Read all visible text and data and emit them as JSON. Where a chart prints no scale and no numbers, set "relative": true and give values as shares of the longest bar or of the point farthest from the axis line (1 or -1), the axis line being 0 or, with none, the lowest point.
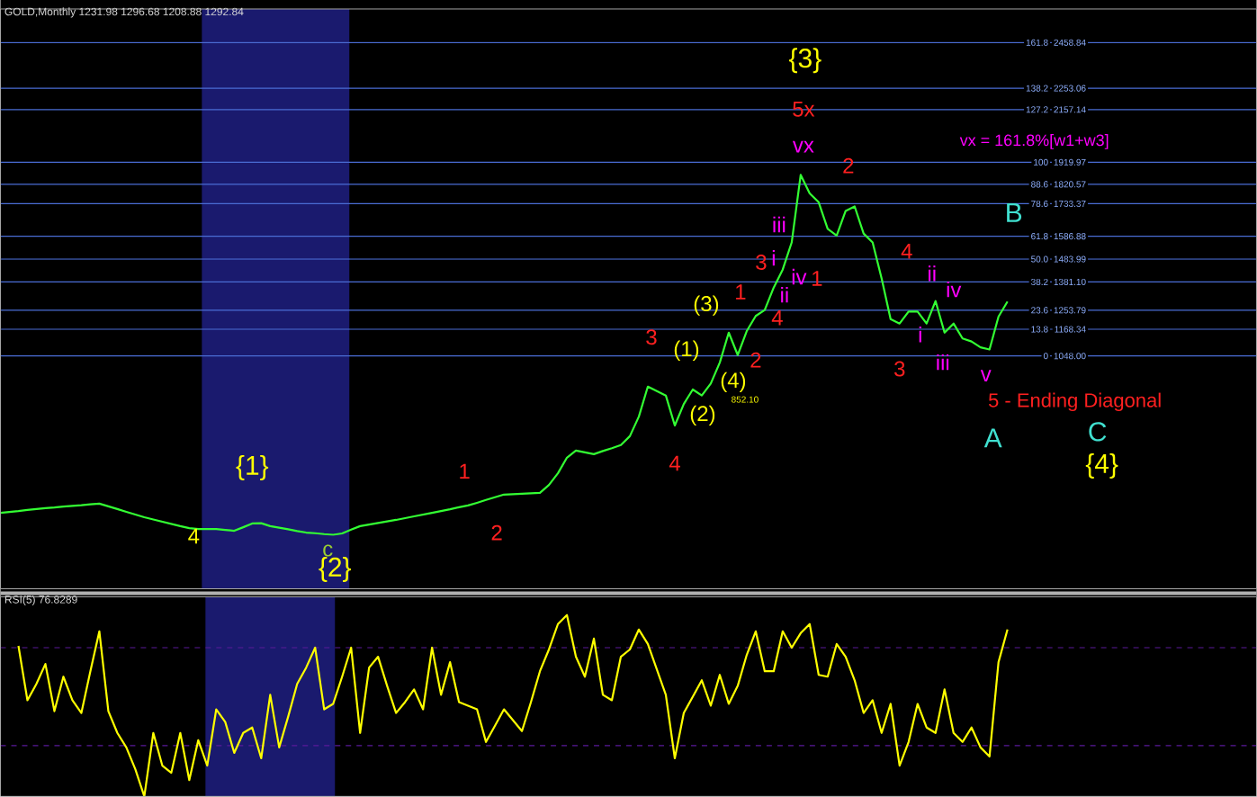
{
  "chart_data": [
    {
      "type": "line",
      "title": "GOLD,Monthly 1231.98 1296.68 1208.88 1292.84",
      "ylim": [
        0,
        2610
      ],
      "tick_labels": "y",
      "categories": [
        null,
        null,
        null,
        null,
        null,
        null,
        null,
        null,
        null,
        null,
        null,
        null,
        null,
        null,
        null,
        null,
        null,
        null,
        null,
        null,
        null,
        null,
        null,
        null,
        null,
        null,
        null,
        null,
        null,
        null,
        null,
        null,
        null,
        null,
        null,
        null,
        null,
        null,
        null,
        null,
        null,
        null,
        null,
        null,
        null,
        null,
        null,
        null,
        null,
        null,
        null,
        null,
        null,
        null,
        null,
        null,
        null,
        null,
        null,
        null,
        null,
        null,
        null,
        null,
        null,
        null,
        null,
        null,
        null,
        null,
        null,
        null,
        null,
        null,
        null,
        null,
        null,
        null,
        null,
        null,
        null,
        null,
        null,
        null,
        null,
        null,
        null,
        null,
        null,
        null,
        null,
        null,
        null,
        null,
        null,
        null,
        null,
        null,
        null,
        null,
        null,
        null,
        null,
        null,
        null,
        null,
        null,
        null,
        null,
        null,
        null,
        null,
        null,
        null,
        null,
        null,
        null,
        null,
        null,
        null,
        null,
        null,
        null,
        null,
        null,
        null,
        null,
        null,
        null,
        null,
        null,
        null,
        null,
        null,
        null,
        null,
        null,
        null,
        null,
        null
      ],
      "yticks": [
        {
          "value": 1048.0,
          "label": "1048.00"
        },
        1168.34,
        1253.79,
        {
          "value": 1381.1,
          "label": "1381.10"
        },
        1483.99,
        1586.88,
        1733.37,
        1820.57,
        1919.97,
        2157.14,
        2253.06,
        2458.84
      ],
      "series": [
        {
          "color": "#33ff33",
          "values": [
            342,
            346,
            350,
            355,
            359,
            363,
            366,
            370,
            373,
            376,
            380,
            383,
            371,
            359,
            346,
            334,
            322,
            312,
            302,
            292,
            282,
            273,
            269,
            269,
            269,
            265,
            261,
            277,
            294,
            295,
            282,
            275,
            268,
            260,
            253,
            250,
            246,
            243,
            249,
            266,
            282,
            289,
            296,
            303,
            310,
            318,
            326,
            334,
            342,
            350,
            358,
            367,
            375,
            387,
            400,
            412,
            424,
            426,
            428,
            430,
            432,
            467,
            520,
            590,
            622,
            614,
            606,
            620,
            633,
            647,
            687,
            775,
            910,
            890,
            870,
            735,
            832,
            897,
            870,
            924,
            1018,
            1153,
            1052,
            1160,
            1228,
            1255,
            1356,
            1437,
            1559,
            1863,
            1780,
            1740,
            1620,
            1590,
            1701,
            1721,
            1599,
            1559,
            1397,
            1214,
            1194,
            1248,
            1248,
            1194,
            1295,
            1153,
            1194,
            1127,
            1113,
            1087,
            1077,
            1225,
            1293,
            null,
            null,
            null,
            null,
            null,
            null,
            null,
            null,
            null,
            null,
            null,
            null,
            null,
            null,
            null,
            null,
            null,
            null,
            null,
            null,
            null,
            null,
            null,
            null,
            null,
            null,
            null
          ]
        }
      ],
      "ref_lines": [
        {
          "axis": "y",
          "value": 1048.0,
          "color": "#4a6cd4"
        },
        {
          "axis": "y",
          "value": 1168.34,
          "color": "#4a6cd4"
        },
        {
          "axis": "y",
          "value": 1253.79,
          "color": "#4a6cd4"
        },
        {
          "axis": "y",
          "value": 1381.1,
          "color": "#4a6cd4"
        },
        {
          "axis": "y",
          "value": 1483.99,
          "color": "#4a6cd4"
        },
        {
          "axis": "y",
          "value": 1586.88,
          "color": "#4a6cd4"
        },
        {
          "axis": "y",
          "value": 1733.37,
          "color": "#4a6cd4"
        },
        {
          "axis": "y",
          "value": 1820.57,
          "color": "#4a6cd4"
        },
        {
          "axis": "y",
          "value": 1919.97,
          "color": "#4a6cd4"
        },
        {
          "axis": "y",
          "value": 2157.14,
          "color": "#4a6cd4"
        },
        {
          "axis": "y",
          "value": 2253.06,
          "color": "#4a6cd4"
        },
        {
          "axis": "y",
          "value": 2458.84,
          "color": "#4a6cd4"
        }
      ],
      "annotations": [
        "{3}",
        "5x",
        "vx",
        "vx = 161.8%[w1+w3]",
        "2",
        "iii",
        "3",
        "i",
        "iv",
        "1",
        "ii",
        "1",
        "4",
        "(3)",
        "3",
        "2",
        "(1)",
        "(4)",
        "852.10",
        "(2)",
        "4",
        "4",
        "ii",
        "iv",
        "i",
        "3",
        "iii",
        "v",
        "B",
        "5 - Ending Diagonal",
        "A",
        "C",
        "{4}",
        "{1}",
        "1",
        "2",
        "{2}",
        "c",
        "4",
        "0",
        "13.8",
        "23.6",
        "38.2",
        "50.0",
        "61.8",
        "78.6",
        "88.6",
        "100",
        "127.2",
        "138.2",
        "161.8"
      ]
    },
    {
      "type": "line",
      "title": "RSI(5) 76.8289",
      "relative": true,
      "tick_labels": false,
      "categories": [
        null,
        null,
        null,
        null,
        null,
        null,
        null,
        null,
        null,
        null,
        null,
        null,
        null,
        null,
        null,
        null,
        null,
        null,
        null,
        null,
        null,
        null,
        null,
        null,
        null,
        null,
        null,
        null,
        null,
        null,
        null,
        null,
        null,
        null,
        null,
        null,
        null,
        null,
        null,
        null,
        null,
        null,
        null,
        null,
        null,
        null,
        null,
        null,
        null,
        null,
        null,
        null,
        null,
        null,
        null,
        null,
        null,
        null,
        null,
        null,
        null,
        null,
        null,
        null,
        null,
        null,
        null,
        null,
        null,
        null,
        null,
        null,
        null,
        null,
        null,
        null,
        null,
        null,
        null,
        null,
        null,
        null,
        null,
        null,
        null,
        null,
        null,
        null,
        null,
        null,
        null,
        null,
        null,
        null,
        null,
        null,
        null,
        null,
        null,
        null,
        null,
        null,
        null,
        null,
        null,
        null,
        null,
        null,
        null,
        null,
        null,
        null,
        null,
        null,
        null,
        null,
        null,
        null,
        null,
        null,
        null,
        null,
        null,
        null,
        null,
        null,
        null,
        null,
        null,
        null,
        null,
        null,
        null,
        null,
        null,
        null,
        null,
        null
      ],
      "series": [
        {
          "color": "#ffff00",
          "values": [
            0.83,
            0.53,
            0.62,
            0.73,
            0.47,
            0.66,
            0.53,
            0.46,
            0.69,
            0.91,
            0.47,
            0.35,
            0.27,
            0.15,
            0,
            0.35,
            0.17,
            0.13,
            0.35,
            0.09,
            0.31,
            0.17,
            0.48,
            0.41,
            0.24,
            0.35,
            0.38,
            0.21,
            0.56,
            0.27,
            0.44,
            0.62,
            0.71,
            0.82,
            0.48,
            0.51,
            0.66,
            0.82,
            0.35,
            0.71,
            0.77,
            0.61,
            0.46,
            0.52,
            0.59,
            0.48,
            0.82,
            0.56,
            0.74,
            0.52,
            0.5,
            0.48,
            0.3,
            0.39,
            0.48,
            0.42,
            0.36,
            0.52,
            0.69,
            0.81,
            0.95,
            1,
            0.77,
            0.66,
            0.87,
            0.56,
            0.53,
            0.77,
            0.81,
            0.92,
            0.84,
            0.7,
            0.56,
            0.21,
            0.46,
            0.55,
            0.64,
            0.5,
            0.67,
            0.51,
            0.61,
            0.78,
            0.91,
            0.69,
            0.69,
            0.91,
            0.82,
            0.9,
            0.95,
            0.67,
            0.66,
            0.84,
            0.77,
            0.64,
            0.46,
            0.53,
            0.35,
            0.51,
            0.17,
            0.3,
            0.51,
            0.38,
            0.35,
            0.59,
            0.35,
            0.3,
            0.38,
            0.27,
            0.22,
            0.74,
            0.92,
            null,
            null,
            null,
            null,
            null,
            null,
            null,
            null,
            null,
            null,
            null,
            null,
            null,
            null,
            null,
            null,
            null,
            null,
            null,
            null,
            null,
            null,
            null,
            null,
            null,
            null,
            null
          ]
        }
      ],
      "ref_lines": [
        {
          "axis": "y",
          "value": 0.82,
          "color": "#5a1a9a",
          "line_style": "dashed"
        },
        {
          "axis": "y",
          "value": 0.28,
          "color": "#5a1a9a",
          "line_style": "dashed"
        }
      ]
    }
  ]
}
